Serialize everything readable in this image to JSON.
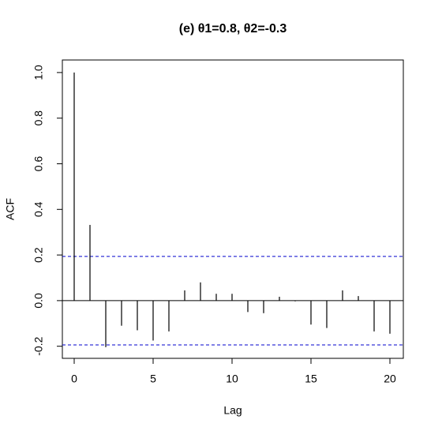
{
  "chart_data": {
    "type": "acf",
    "title": "(e) θ1=0.8, θ2=-0.3",
    "x_label": "Lag",
    "y_label": "ACF",
    "x": [
      0,
      1,
      2,
      3,
      4,
      5,
      6,
      7,
      8,
      9,
      10,
      11,
      12,
      13,
      14,
      15,
      16,
      17,
      18,
      19,
      20
    ],
    "values": [
      1.0,
      0.332,
      -0.204,
      -0.11,
      -0.13,
      -0.175,
      -0.135,
      0.045,
      0.08,
      0.03,
      0.03,
      -0.05,
      -0.055,
      0.017,
      -0.003,
      -0.105,
      -0.12,
      0.045,
      0.02,
      -0.135,
      -0.145
    ],
    "color": "#000000",
    "ci_bands": [
      0.194,
      -0.194
    ],
    "ci_color": "#0000cc",
    "xlim": [
      -0.75,
      20.85
    ],
    "ylim": [
      -0.253,
      1.055
    ],
    "xticks": [
      0,
      5,
      10,
      15,
      20
    ],
    "yticks": [
      -0.2,
      {
        "value": 0,
        "label": "0.0"
      },
      0.2,
      0.4,
      0.6,
      0.8,
      {
        "value": 1,
        "label": "1.0"
      }
    ]
  }
}
